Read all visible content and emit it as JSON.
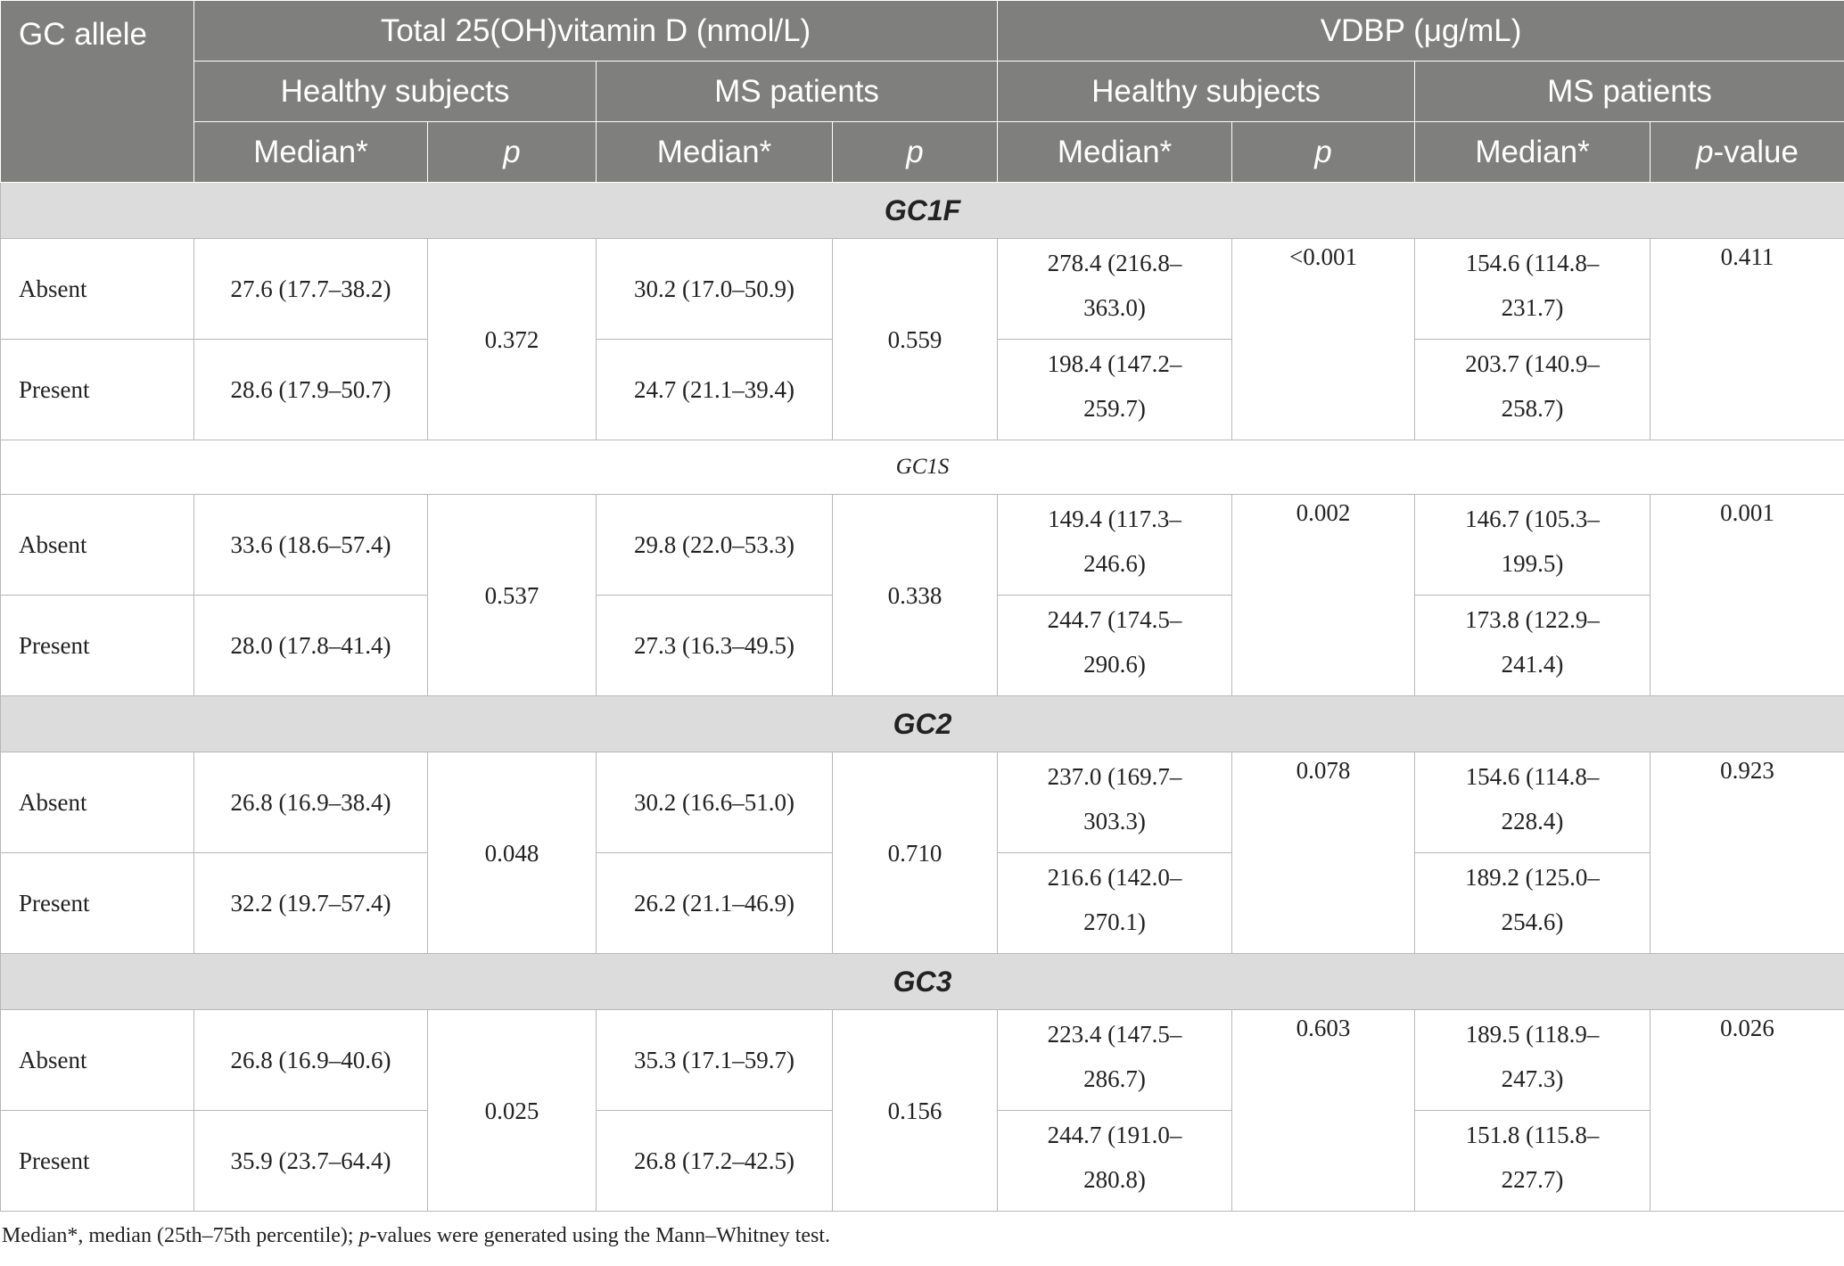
{
  "header": {
    "col0": "GC allele",
    "total_vitd": "Total 25(OH)vitamin D (nmol/L)",
    "vdbp": "VDBP (μg/mL)",
    "healthy": "Healthy subjects",
    "ms": "MS patients",
    "median": "Median*",
    "p": "p",
    "p_value_italic": "p",
    "p_value_suffix": "-value"
  },
  "groups": [
    {
      "name": "GC1F",
      "style": "bold",
      "rows": [
        {
          "label": "Absent",
          "vitd_healthy": "27.6 (17.7–38.2)",
          "vitd_ms": "30.2 (17.0–50.9)",
          "vdbp_healthy_1": "278.4 (216.8–",
          "vdbp_healthy_2": "363.0)",
          "vdbp_ms_1": "154.6 (114.8–",
          "vdbp_ms_2": "231.7)"
        },
        {
          "label": "Present",
          "vitd_healthy": "28.6 (17.9–50.7)",
          "vitd_ms": "24.7 (21.1–39.4)",
          "vdbp_healthy_1": "198.4 (147.2–",
          "vdbp_healthy_2": "259.7)",
          "vdbp_ms_1": "203.7 (140.9–",
          "vdbp_ms_2": "258.7)"
        }
      ],
      "p_vitd_healthy": "0.372",
      "p_vitd_ms": "0.559",
      "p_vdbp_healthy": "<0.001",
      "p_vdbp_ms": "0.411"
    },
    {
      "name": "GC1S",
      "style": "plain",
      "rows": [
        {
          "label": "Absent",
          "vitd_healthy": "33.6 (18.6–57.4)",
          "vitd_ms": "29.8 (22.0–53.3)",
          "vdbp_healthy_1": "149.4 (117.3–",
          "vdbp_healthy_2": "246.6)",
          "vdbp_ms_1": "146.7 (105.3–",
          "vdbp_ms_2": "199.5)"
        },
        {
          "label": "Present",
          "vitd_healthy": "28.0 (17.8–41.4)",
          "vitd_ms": "27.3 (16.3–49.5)",
          "vdbp_healthy_1": "244.7 (174.5–",
          "vdbp_healthy_2": "290.6)",
          "vdbp_ms_1": "173.8 (122.9–",
          "vdbp_ms_2": "241.4)"
        }
      ],
      "p_vitd_healthy": "0.537",
      "p_vitd_ms": "0.338",
      "p_vdbp_healthy": "0.002",
      "p_vdbp_ms": "0.001"
    },
    {
      "name": "GC2",
      "style": "bold",
      "rows": [
        {
          "label": "Absent",
          "vitd_healthy": "26.8 (16.9–38.4)",
          "vitd_ms": "30.2 (16.6–51.0)",
          "vdbp_healthy_1": "237.0 (169.7–",
          "vdbp_healthy_2": "303.3)",
          "vdbp_ms_1": "154.6 (114.8–",
          "vdbp_ms_2": "228.4)"
        },
        {
          "label": "Present",
          "vitd_healthy": "32.2 (19.7–57.4)",
          "vitd_ms": "26.2 (21.1–46.9)",
          "vdbp_healthy_1": "216.6 (142.0–",
          "vdbp_healthy_2": "270.1)",
          "vdbp_ms_1": "189.2 (125.0–",
          "vdbp_ms_2": "254.6)"
        }
      ],
      "p_vitd_healthy": "0.048",
      "p_vitd_ms": "0.710",
      "p_vdbp_healthy": "0.078",
      "p_vdbp_ms": "0.923"
    },
    {
      "name": "GC3",
      "style": "bold",
      "rows": [
        {
          "label": "Absent",
          "vitd_healthy": "26.8 (16.9–40.6)",
          "vitd_ms": "35.3 (17.1–59.7)",
          "vdbp_healthy_1": "223.4 (147.5–",
          "vdbp_healthy_2": "286.7)",
          "vdbp_ms_1": "189.5 (118.9–",
          "vdbp_ms_2": "247.3)"
        },
        {
          "label": "Present",
          "vitd_healthy": "35.9 (23.7–64.4)",
          "vitd_ms": "26.8 (17.2–42.5)",
          "vdbp_healthy_1": "244.7 (191.0–",
          "vdbp_healthy_2": "280.8)",
          "vdbp_ms_1": "151.8 (115.8–",
          "vdbp_ms_2": "227.7)"
        }
      ],
      "p_vitd_healthy": "0.025",
      "p_vitd_ms": "0.156",
      "p_vdbp_healthy": "0.603",
      "p_vdbp_ms": "0.026"
    }
  ],
  "footnote": {
    "part1": "Median*, median (25th–75th percentile); ",
    "p_italic": "p",
    "part2": "-values were generated using the Mann–Whitney test."
  }
}
